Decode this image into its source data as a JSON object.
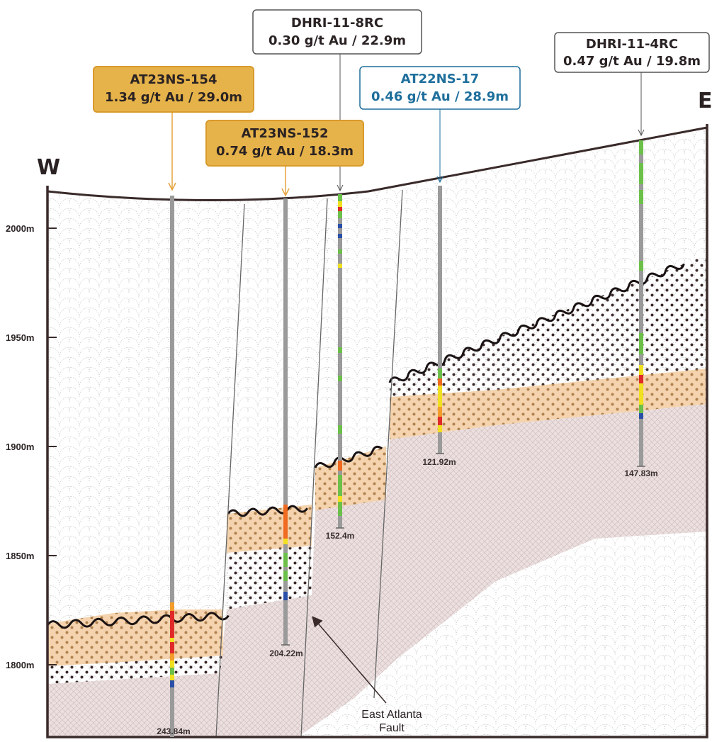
{
  "section": {
    "direction_left": "W",
    "direction_right": "E",
    "elevation_labels": [
      "2000m",
      "1950m",
      "1900m",
      "1850m",
      "1800m"
    ],
    "fault_label": [
      "East Atlanta",
      "Fault"
    ],
    "colors": {
      "gold_fill": "#e6b34a",
      "gold_border": "#d99a2b",
      "blue_text": "#1f6f9c",
      "white_border": "#555555",
      "orange_layer": "#f4d3ae",
      "bedrock": "#e9dcdc",
      "outline": "#3a2a2a",
      "hole": "#9a9a9a"
    }
  },
  "callouts": [
    {
      "id": "AT23NS-154",
      "line1": "AT23NS-154",
      "line2": "1.34 g/t Au / 29.0m",
      "style": "gold"
    },
    {
      "id": "DHRI-11-8RC",
      "line1": "DHRI-11-8RC",
      "line2": "0.30 g/t Au / 22.9m",
      "style": "white"
    },
    {
      "id": "AT22NS-17",
      "line1": "AT22NS-17",
      "line2": "0.46 g/t Au / 28.9m",
      "style": "blue"
    },
    {
      "id": "AT23NS-152",
      "line1": "AT23NS-152",
      "line2": "0.74 g/t Au / 18.3m",
      "style": "gold"
    },
    {
      "id": "DHRI-11-4RC",
      "line1": "DHRI-11-4RC",
      "line2": "0.47 g/t Au / 19.8m",
      "style": "white"
    }
  ],
  "drillholes": [
    {
      "name": "AT23NS-154",
      "end_depth": "243.84m"
    },
    {
      "name": "AT23NS-152",
      "end_depth": "204.22m"
    },
    {
      "name": "DHRI-11-8RC",
      "end_depth": "152.4m"
    },
    {
      "name": "AT22NS-17",
      "end_depth": "121.92m"
    },
    {
      "name": "DHRI-11-4RC",
      "end_depth": "147.83m"
    }
  ]
}
